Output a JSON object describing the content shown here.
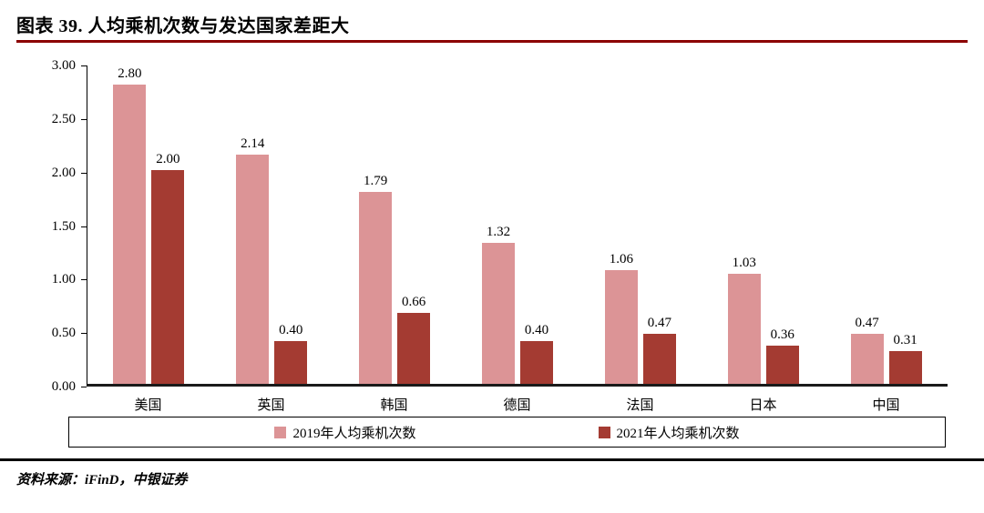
{
  "header": {
    "title": "图表 39. 人均乘机次数与发达国家差距大"
  },
  "chart_data": {
    "type": "bar",
    "title": "人均乘机次数与发达国家差距大",
    "categories": [
      "美国",
      "英国",
      "韩国",
      "德国",
      "法国",
      "日本",
      "中国"
    ],
    "series": [
      {
        "name": "2019年人均乘机次数",
        "color": "#DC9496",
        "values": [
          2.8,
          2.14,
          1.79,
          1.32,
          1.06,
          1.03,
          0.47
        ]
      },
      {
        "name": "2021年人均乘机次数",
        "color": "#A43B32",
        "values": [
          2.0,
          0.4,
          0.66,
          0.4,
          0.47,
          0.36,
          0.31
        ]
      }
    ],
    "ylim": [
      0,
      3
    ],
    "ytick_labels": [
      "3.00",
      "2.50",
      "2.00",
      "1.50",
      "1.00",
      "0.50",
      "0.00"
    ],
    "grid": false,
    "legend_position": "bottom"
  },
  "footer": {
    "source_label": "资料来源：iFinD，中银证券"
  },
  "colors": {
    "title_underline": "#8B0000",
    "axis": "#000000"
  }
}
